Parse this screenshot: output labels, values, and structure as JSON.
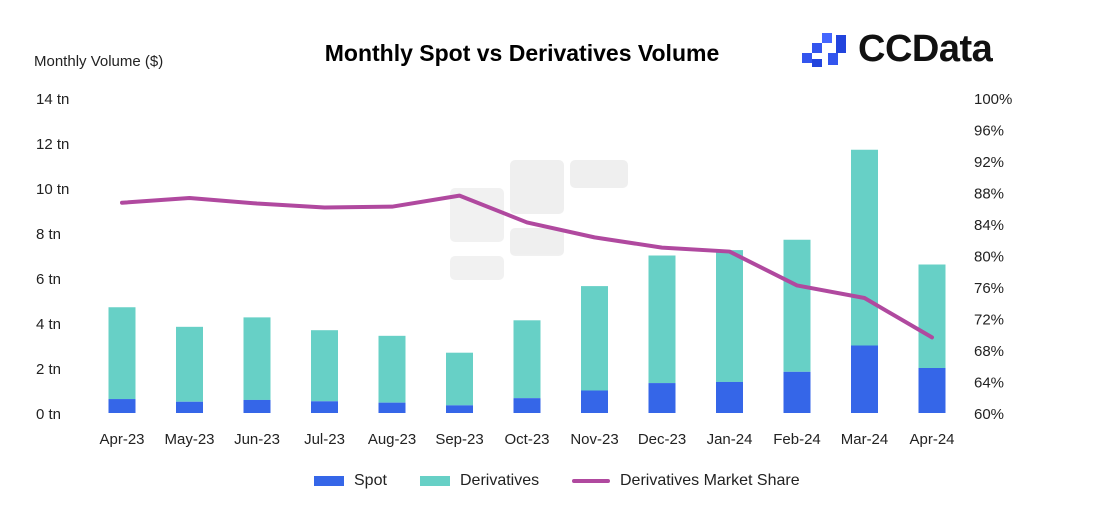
{
  "chart_data": {
    "type": "bar",
    "title": "Monthly Spot vs Derivatives Volume",
    "ylabel": "Monthly Volume ($)",
    "y2label": "",
    "categories": [
      "Apr-23",
      "May-23",
      "Jun-23",
      "Jul-23",
      "Aug-23",
      "Sep-23",
      "Oct-23",
      "Nov-23",
      "Dec-23",
      "Jan-24",
      "Feb-24",
      "Mar-24",
      "Apr-24"
    ],
    "ylim": [
      0,
      14
    ],
    "yticks": [
      0,
      2,
      4,
      6,
      8,
      10,
      12,
      14
    ],
    "ytick_labels": [
      "0 tn",
      "2 tn",
      "4 tn",
      "6 tn",
      "8 tn",
      "10 tn",
      "12 tn",
      "14 tn"
    ],
    "y2lim": [
      60,
      100
    ],
    "y2ticks": [
      60,
      64,
      68,
      72,
      76,
      80,
      84,
      88,
      92,
      96,
      100
    ],
    "y2tick_labels": [
      "60%",
      "64%",
      "68%",
      "72%",
      "76%",
      "80%",
      "84%",
      "88%",
      "92%",
      "96%",
      "100%"
    ],
    "stacked": true,
    "series": [
      {
        "name": "Spot",
        "type": "bar",
        "axis": "left",
        "color": "#3566e8",
        "values": [
          0.62,
          0.5,
          0.58,
          0.52,
          0.46,
          0.34,
          0.66,
          1.0,
          1.33,
          1.38,
          1.83,
          3.0,
          2.0
        ]
      },
      {
        "name": "Derivatives",
        "type": "bar",
        "axis": "left",
        "color": "#67d0c6",
        "values": [
          4.08,
          3.33,
          3.67,
          3.16,
          2.97,
          2.34,
          3.46,
          4.64,
          5.67,
          5.86,
          5.87,
          8.7,
          4.6
        ]
      },
      {
        "name": "Derivatives Market Share",
        "type": "line",
        "axis": "right",
        "color": "#b0499f",
        "values": [
          86.7,
          87.3,
          86.6,
          86.1,
          86.2,
          87.6,
          84.2,
          82.3,
          81.0,
          80.5,
          76.2,
          74.6,
          69.6
        ]
      }
    ]
  },
  "branding": {
    "logo_text": "CCData"
  },
  "legend": {
    "spot": "Spot",
    "derivatives": "Derivatives",
    "share": "Derivatives Market Share"
  }
}
